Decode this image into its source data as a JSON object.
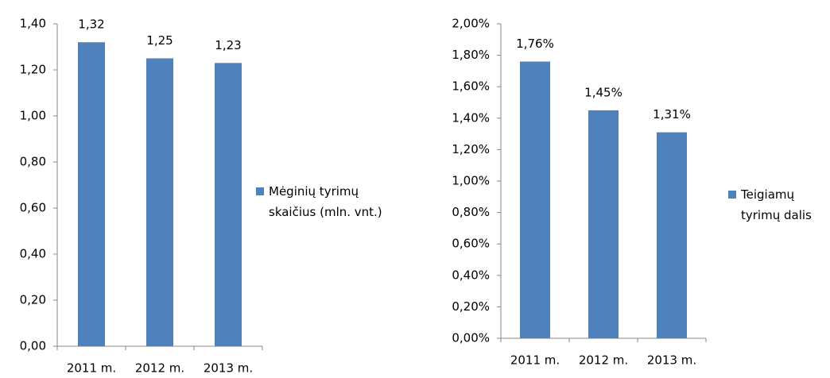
{
  "chart_data": [
    {
      "type": "bar",
      "categories": [
        "2011 m.",
        "2012 m.",
        "2013 m."
      ],
      "series": [
        {
          "name": "Mėginių tyrimų skaičius (mln. vnt.)",
          "color": "#4f81bd",
          "values": [
            1.32,
            1.25,
            1.23
          ],
          "value_labels": [
            "1,32",
            "1,25",
            "1,23"
          ]
        }
      ],
      "ylim": [
        0,
        1.4
      ],
      "yticks": [
        {
          "value": 0,
          "label": "0,00"
        },
        {
          "value": 0.2,
          "label": "0,20"
        },
        {
          "value": 0.4,
          "label": "0,40"
        },
        {
          "value": 0.6,
          "label": "0,60"
        },
        {
          "value": 0.8,
          "label": "0,80"
        },
        {
          "value": 1.0,
          "label": "1,00"
        },
        {
          "value": 1.2,
          "label": "1,20"
        },
        {
          "value": 1.4,
          "label": "1,40"
        }
      ],
      "legend": "right"
    },
    {
      "type": "bar",
      "categories": [
        "2011 m.",
        "2012 m.",
        "2013 m."
      ],
      "series": [
        {
          "name": "Teigiamų tyrimų dalis",
          "color": "#4f81bd",
          "values": [
            1.76,
            1.45,
            1.31
          ],
          "value_labels": [
            "1,76%",
            "1,45%",
            "1,31%"
          ]
        }
      ],
      "ylim": [
        0,
        2.0
      ],
      "yticks": [
        {
          "value": 0,
          "label": "0,00%"
        },
        {
          "value": 0.2,
          "label": "0,20%"
        },
        {
          "value": 0.4,
          "label": "0,40%"
        },
        {
          "value": 0.6,
          "label": "0,60%"
        },
        {
          "value": 0.8,
          "label": "0,80%"
        },
        {
          "value": 1.0,
          "label": "1,00%"
        },
        {
          "value": 1.2,
          "label": "1,20%"
        },
        {
          "value": 1.4,
          "label": "1,40%"
        },
        {
          "value": 1.6,
          "label": "1,60%"
        },
        {
          "value": 1.8,
          "label": "1,80%"
        },
        {
          "value": 2.0,
          "label": "2,00%"
        }
      ],
      "legend": "right"
    }
  ]
}
